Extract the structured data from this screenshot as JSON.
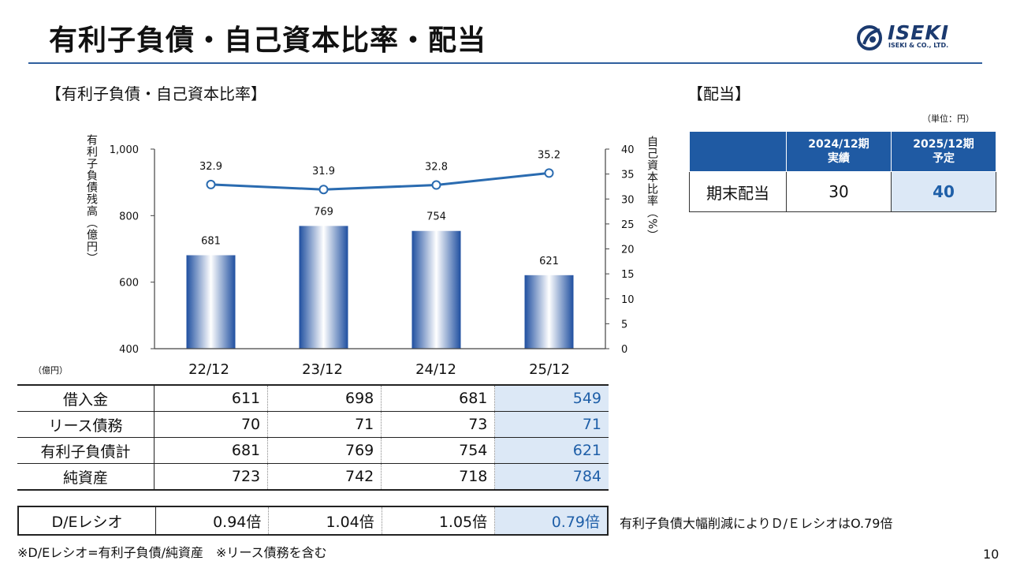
{
  "page": {
    "title": "有利子負債・自己資本比率・配当",
    "page_number": "10"
  },
  "logo": {
    "name": "ISEKI",
    "sub": "ISEKI & CO., LTD."
  },
  "section_left": "【有利子負債・自己資本比率】",
  "section_right": "【配当】",
  "chart_data": {
    "type": "bar",
    "categories": [
      "22/12",
      "23/12",
      "24/12",
      "25/12"
    ],
    "series": [
      {
        "name": "有利子負債残高",
        "axis": "left",
        "values": [
          681,
          769,
          754,
          621
        ]
      },
      {
        "name": "自己資本比率",
        "type": "line",
        "axis": "right",
        "values": [
          32.9,
          31.9,
          32.8,
          35.2
        ]
      }
    ],
    "y_left": {
      "label": "有利子負債残高（億円）",
      "ylim": [
        400,
        1000
      ],
      "ticks": [
        "1,000",
        "800",
        "600",
        "400"
      ]
    },
    "y_right": {
      "label": "自己資本比率（%）",
      "ylim": [
        0,
        40
      ],
      "ticks": [
        "40",
        "35",
        "30",
        "25",
        "20",
        "15",
        "10",
        "5",
        "0"
      ]
    },
    "bar_labels": [
      "681",
      "769",
      "754",
      "621"
    ],
    "line_labels": [
      "32.9",
      "31.9",
      "32.8",
      "35.2"
    ],
    "colors": {
      "bar_edge": "#1f4fa0",
      "bar_mid": "#ffffff",
      "line": "#2a6bb0",
      "axis": "#444444"
    }
  },
  "table": {
    "unit": "（億円）",
    "rows": [
      {
        "label": "借入金",
        "values": [
          "611",
          "698",
          "681",
          "549"
        ]
      },
      {
        "label": "リース債務",
        "values": [
          "70",
          "71",
          "73",
          "71"
        ]
      },
      {
        "label": "有利子負債計",
        "values": [
          "681",
          "769",
          "754",
          "621"
        ]
      },
      {
        "label": "純資産",
        "values": [
          "723",
          "742",
          "718",
          "784"
        ]
      }
    ],
    "de_row": {
      "label": "D/Eレシオ",
      "values": [
        "0.94倍",
        "1.04倍",
        "1.05倍",
        "0.79倍"
      ]
    },
    "de_note": "有利子負債大幅削減によりＤ/ＥレシオはO.79倍",
    "footnote": "※D/Eレシオ=有利子負債/純資産　※リース債務を含む"
  },
  "dividend": {
    "unit": "（単位：円）",
    "headers": [
      [
        "2024/12期",
        "実績"
      ],
      [
        "2025/12期",
        "予定"
      ]
    ],
    "row_label": "期末配当",
    "values": [
      "30",
      "40"
    ]
  }
}
